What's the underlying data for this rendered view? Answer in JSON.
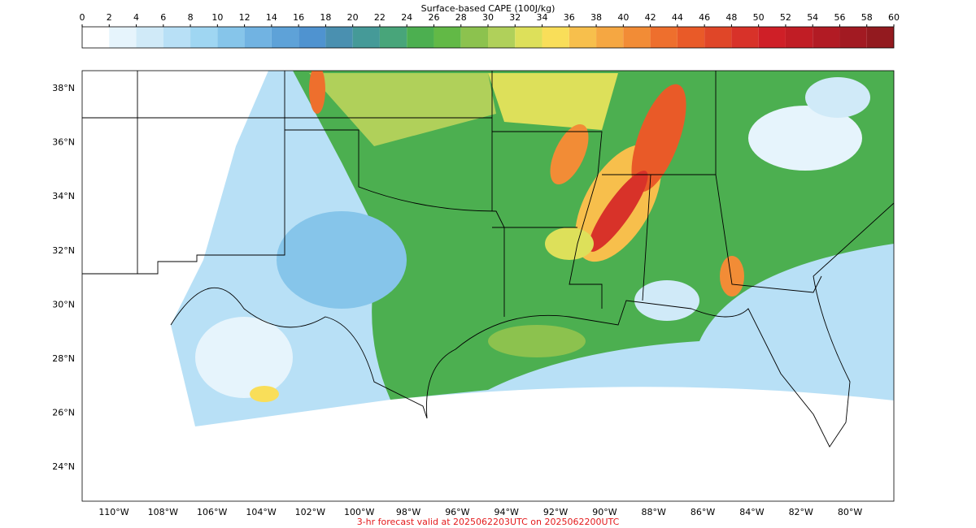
{
  "colorbar": {
    "title": "Surface-based CAPE (100J/kg)",
    "levels": [
      0,
      2,
      4,
      6,
      8,
      10,
      12,
      14,
      16,
      18,
      20,
      22,
      24,
      26,
      28,
      30,
      32,
      34,
      36,
      38,
      40,
      42,
      44,
      46,
      48,
      50,
      52,
      54,
      56,
      58,
      60
    ],
    "colors": [
      "#ffffff",
      "#e6f4fc",
      "#d0eaf8",
      "#b8e0f6",
      "#9fd6f2",
      "#86c5ea",
      "#71b3e2",
      "#5ea2d8",
      "#4f93d0",
      "#4a90b0",
      "#459a98",
      "#48a57a",
      "#4caf50",
      "#62b946",
      "#8cc24e",
      "#b0d05a",
      "#dde05a",
      "#f9de59",
      "#f7bf4c",
      "#f5a742",
      "#f28c36",
      "#ee6f2d",
      "#e95a28",
      "#e04628",
      "#d83229",
      "#cf1f27",
      "#c11d25",
      "#b21b24",
      "#a21a22",
      "#931a1f"
    ]
  },
  "map": {
    "lat_ticks": [
      {
        "value": 38,
        "label": "38°N"
      },
      {
        "value": 36,
        "label": "36°N"
      },
      {
        "value": 34,
        "label": "34°N"
      },
      {
        "value": 32,
        "label": "32°N"
      },
      {
        "value": 30,
        "label": "30°N"
      },
      {
        "value": 28,
        "label": "28°N"
      },
      {
        "value": 26,
        "label": "26°N"
      },
      {
        "value": 24,
        "label": "24°N"
      }
    ],
    "lon_ticks": [
      {
        "value": -110,
        "label": "110°W"
      },
      {
        "value": -108,
        "label": "108°W"
      },
      {
        "value": -106,
        "label": "106°W"
      },
      {
        "value": -104,
        "label": "104°W"
      },
      {
        "value": -102,
        "label": "102°W"
      },
      {
        "value": -100,
        "label": "100°W"
      },
      {
        "value": -98,
        "label": "98°W"
      },
      {
        "value": -96,
        "label": "96°W"
      },
      {
        "value": -94,
        "label": "94°W"
      },
      {
        "value": -92,
        "label": "92°W"
      },
      {
        "value": -90,
        "label": "90°W"
      },
      {
        "value": -88,
        "label": "88°W"
      },
      {
        "value": -86,
        "label": "86°W"
      },
      {
        "value": -84,
        "label": "84°W"
      },
      {
        "value": -82,
        "label": "82°W"
      },
      {
        "value": -80,
        "label": "80°W"
      }
    ]
  },
  "footer": "3-hr forecast valid at 2025062203UTC on 2025062200UTC"
}
